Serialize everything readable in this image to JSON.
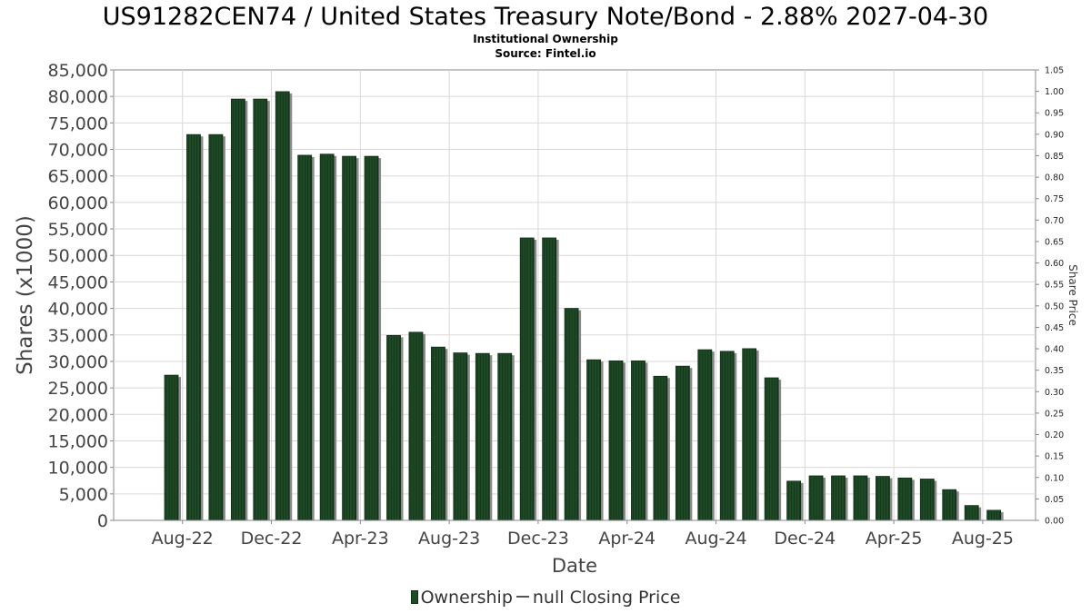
{
  "header": {
    "title": "US91282CEN74 / United States Treasury Note/Bond - 2.88% 2027-04-30",
    "subtitle": "Institutional Ownership",
    "source": "Source: Fintel.io"
  },
  "legend": {
    "ownership_label": "Ownership",
    "price_label": "null Closing Price"
  },
  "colors": {
    "bar": "#1e4a26",
    "bar_dark": "#0f2a15",
    "shadow": "#8a8a8a",
    "grid": "#d8d8d8"
  },
  "chart_data": {
    "type": "bar",
    "title": "US91282CEN74 / United States Treasury Note/Bond - 2.88% 2027-04-30",
    "subtitle": "Institutional Ownership",
    "xlabel": "Date",
    "ylabel": "Shares (x1000)",
    "y2label": "Share Price",
    "ylim": [
      0,
      85000
    ],
    "y2lim": [
      0,
      1.05
    ],
    "yticks": [
      "0",
      "5,000",
      "10,000",
      "15,000",
      "20,000",
      "25,000",
      "30,000",
      "35,000",
      "40,000",
      "45,000",
      "50,000",
      "55,000",
      "60,000",
      "65,000",
      "70,000",
      "75,000",
      "80,000",
      "85,000"
    ],
    "y2ticks": [
      "0.00",
      "0.05",
      "0.10",
      "0.15",
      "0.20",
      "0.25",
      "0.30",
      "0.35",
      "0.40",
      "0.45",
      "0.50",
      "0.55",
      "0.60",
      "0.65",
      "0.70",
      "0.75",
      "0.80",
      "0.85",
      "0.90",
      "0.95",
      "1.00",
      "1.05"
    ],
    "xticks": [
      "Aug-22",
      "Dec-22",
      "Apr-23",
      "Aug-23",
      "Dec-23",
      "Apr-24",
      "Aug-24",
      "Dec-24",
      "Apr-25",
      "Aug-25"
    ],
    "xtick_bar_index": [
      0.5,
      4.5,
      8.5,
      12.5,
      16.5,
      20.5,
      24.5,
      28.5,
      32.5,
      36.5
    ],
    "grid": true,
    "legend_position": "bottom",
    "series": [
      {
        "name": "Ownership",
        "values": [
          27400,
          72800,
          72800,
          79500,
          79500,
          80900,
          68900,
          69100,
          68700,
          68700,
          34900,
          35500,
          32700,
          31600,
          31500,
          31500,
          53300,
          53300,
          40000,
          30300,
          30100,
          30100,
          27200,
          29100,
          32200,
          31900,
          32400,
          26900,
          7400,
          8400,
          8400,
          8400,
          8300,
          8000,
          7800,
          5800,
          2800,
          1900
        ]
      }
    ]
  }
}
